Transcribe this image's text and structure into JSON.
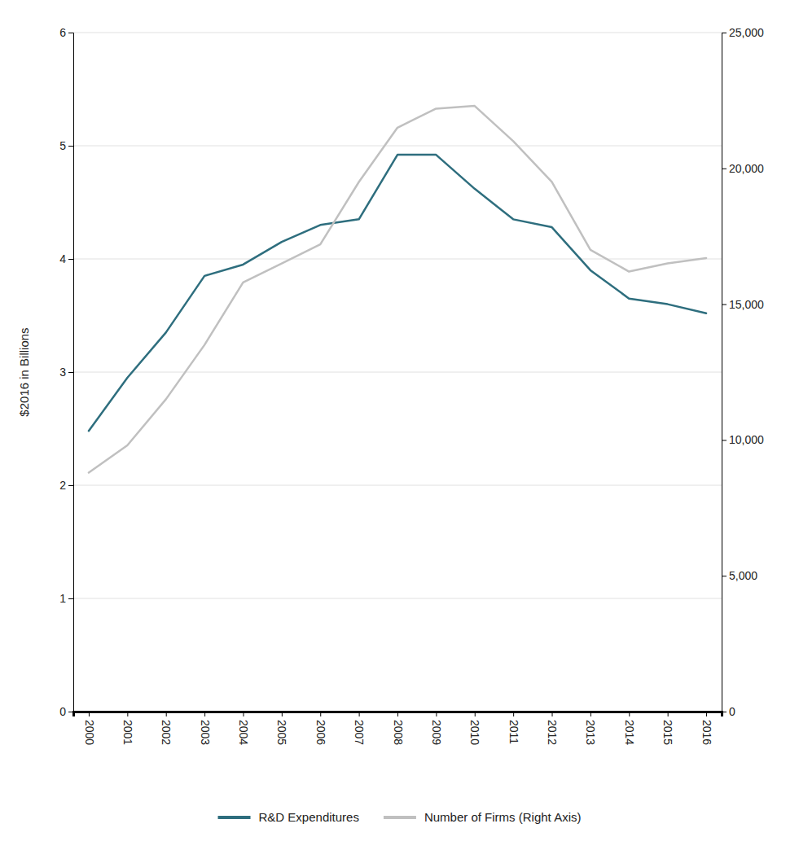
{
  "chart_data": {
    "type": "line",
    "ylabel": "$2016 in Billions",
    "x": [
      2000,
      2001,
      2002,
      2003,
      2004,
      2005,
      2006,
      2007,
      2008,
      2009,
      2010,
      2011,
      2012,
      2013,
      2014,
      2015,
      2016
    ],
    "xlim": [
      1999.6,
      2016.4
    ],
    "xticks": [
      2000,
      2001,
      2002,
      2003,
      2004,
      2005,
      2006,
      2007,
      2008,
      2009,
      2010,
      2011,
      2012,
      2013,
      2014,
      2015,
      2016
    ],
    "ylim": [
      0,
      6
    ],
    "yticks": [
      0,
      1,
      2,
      3,
      4,
      5,
      6
    ],
    "y2lim": [
      0,
      25000
    ],
    "y2ticks": [
      0,
      {
        "value": 5000,
        "label": "5,000"
      },
      {
        "value": 10000,
        "label": "10,000"
      },
      {
        "value": 15000,
        "label": "15,000"
      },
      {
        "value": 20000,
        "label": "20,000"
      },
      {
        "value": 25000,
        "label": "25,000"
      }
    ],
    "grid": true,
    "legend": "bottom",
    "series": [
      {
        "name": "R&D Expenditures",
        "color": "#2E6E7E",
        "values": [
          2.48,
          2.95,
          3.35,
          3.85,
          3.95,
          4.15,
          4.3,
          4.35,
          4.92,
          4.92,
          4.62,
          4.35,
          4.28,
          3.9,
          3.65,
          3.6,
          3.52
        ]
      },
      {
        "name": "Number of Firms (Right Axis)",
        "color": "#C0C0C0",
        "axis": "y2",
        "values": [
          8800,
          9800,
          11500,
          13500,
          15800,
          16500,
          17200,
          19500,
          21500,
          22200,
          22300,
          21000,
          19500,
          17000,
          16200,
          16500,
          16700
        ]
      }
    ]
  }
}
